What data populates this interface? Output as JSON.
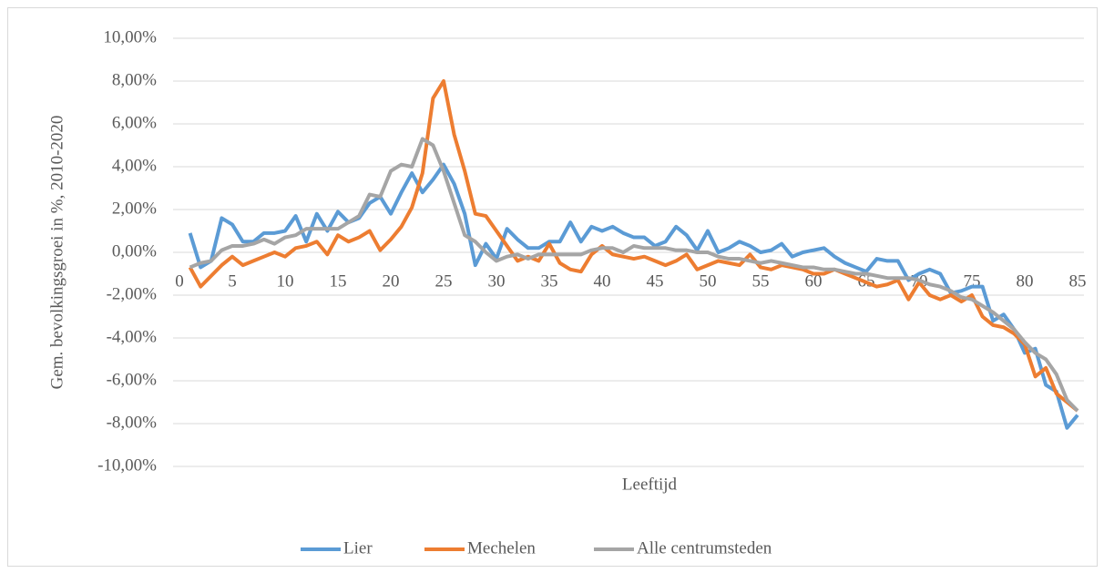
{
  "chart_data": {
    "type": "line",
    "x_label": "Leeftijd",
    "y_label": "Gem. bevolkingsgroei in %, 2010-2020",
    "x": [
      1,
      2,
      3,
      4,
      5,
      6,
      7,
      8,
      9,
      10,
      11,
      12,
      13,
      14,
      15,
      16,
      17,
      18,
      19,
      20,
      21,
      22,
      23,
      24,
      25,
      26,
      27,
      28,
      29,
      30,
      31,
      32,
      33,
      34,
      35,
      36,
      37,
      38,
      39,
      40,
      41,
      42,
      43,
      44,
      45,
      46,
      47,
      48,
      49,
      50,
      51,
      52,
      53,
      54,
      55,
      56,
      57,
      58,
      59,
      60,
      61,
      62,
      63,
      64,
      65,
      66,
      67,
      68,
      69,
      70,
      71,
      72,
      73,
      74,
      75,
      76,
      77,
      78,
      79,
      80,
      81,
      82,
      83,
      84,
      85
    ],
    "series": [
      {
        "name": "Lier",
        "color": "#5b9bd5",
        "values": [
          0.9,
          -0.7,
          -0.4,
          1.6,
          1.3,
          0.5,
          0.5,
          0.9,
          0.9,
          1.0,
          1.7,
          0.5,
          1.8,
          1.0,
          1.9,
          1.4,
          1.6,
          2.3,
          2.6,
          1.8,
          2.8,
          3.7,
          2.8,
          3.4,
          4.1,
          3.2,
          1.8,
          -0.6,
          0.4,
          -0.3,
          1.1,
          0.6,
          0.2,
          0.2,
          0.5,
          0.5,
          1.4,
          0.5,
          1.2,
          1.0,
          1.2,
          0.9,
          0.7,
          0.7,
          0.3,
          0.5,
          1.2,
          0.8,
          0.1,
          1.0,
          0.0,
          0.2,
          0.5,
          0.3,
          0.0,
          0.1,
          0.4,
          -0.2,
          0.0,
          0.1,
          0.2,
          -0.2,
          -0.5,
          -0.7,
          -0.9,
          -0.3,
          -0.4,
          -0.4,
          -1.3,
          -1.0,
          -0.8,
          -1.0,
          -1.9,
          -1.8,
          -1.6,
          -1.6,
          -3.2,
          -2.9,
          -3.6,
          -4.7,
          -4.5,
          -6.2,
          -6.5,
          -8.2,
          -7.6
        ]
      },
      {
        "name": "Mechelen",
        "color": "#ed7d31",
        "values": [
          -0.7,
          -1.6,
          -1.1,
          -0.6,
          -0.2,
          -0.6,
          -0.4,
          -0.2,
          0.0,
          -0.2,
          0.2,
          0.3,
          0.5,
          -0.1,
          0.8,
          0.5,
          0.7,
          1.0,
          0.1,
          0.6,
          1.2,
          2.1,
          3.7,
          7.2,
          8.0,
          5.5,
          3.8,
          1.8,
          1.7,
          1.0,
          0.3,
          -0.4,
          -0.2,
          -0.4,
          0.4,
          -0.5,
          -0.8,
          -0.9,
          -0.1,
          0.3,
          -0.1,
          -0.2,
          -0.3,
          -0.2,
          -0.4,
          -0.6,
          -0.4,
          -0.1,
          -0.8,
          -0.6,
          -0.4,
          -0.5,
          -0.6,
          -0.1,
          -0.7,
          -0.8,
          -0.6,
          -0.7,
          -0.8,
          -1.0,
          -1.0,
          -0.8,
          -1.0,
          -1.2,
          -1.4,
          -1.6,
          -1.5,
          -1.3,
          -2.2,
          -1.4,
          -2.0,
          -2.2,
          -2.0,
          -2.3,
          -2.0,
          -3.0,
          -3.4,
          -3.5,
          -3.8,
          -4.3,
          -5.8,
          -5.4,
          -6.6,
          -7.0,
          -7.4
        ]
      },
      {
        "name": "Alle centrumsteden",
        "color": "#a5a5a5",
        "values": [
          -0.7,
          -0.5,
          -0.4,
          0.1,
          0.3,
          0.3,
          0.4,
          0.6,
          0.4,
          0.7,
          0.8,
          1.1,
          1.1,
          1.1,
          1.1,
          1.4,
          1.7,
          2.7,
          2.6,
          3.8,
          4.1,
          4.0,
          5.3,
          5.0,
          3.8,
          2.3,
          0.8,
          0.5,
          0.0,
          -0.4,
          -0.2,
          -0.1,
          -0.3,
          -0.1,
          -0.1,
          -0.1,
          -0.1,
          -0.1,
          0.1,
          0.2,
          0.2,
          0.0,
          0.3,
          0.2,
          0.2,
          0.2,
          0.1,
          0.1,
          0.0,
          0.0,
          -0.2,
          -0.3,
          -0.3,
          -0.4,
          -0.5,
          -0.4,
          -0.5,
          -0.6,
          -0.7,
          -0.7,
          -0.8,
          -0.8,
          -0.9,
          -1.0,
          -1.0,
          -1.1,
          -1.2,
          -1.2,
          -1.2,
          -1.3,
          -1.5,
          -1.6,
          -1.8,
          -2.1,
          -2.2,
          -2.5,
          -2.8,
          -3.2,
          -3.6,
          -4.2,
          -4.7,
          -5.0,
          -5.7,
          -6.9,
          -7.4
        ]
      }
    ],
    "xlim": [
      0,
      85
    ],
    "xticks": [
      0,
      5,
      10,
      15,
      20,
      25,
      30,
      35,
      40,
      45,
      50,
      55,
      60,
      65,
      70,
      75,
      80,
      85
    ],
    "ylim": [
      -10,
      10
    ],
    "yticks": [
      {
        "value": -10,
        "label": "-10,00%"
      },
      {
        "value": -8,
        "label": "-8,00%"
      },
      {
        "value": -6,
        "label": "-6,00%"
      },
      {
        "value": -4,
        "label": "-4,00%"
      },
      {
        "value": -2,
        "label": "-2,00%"
      },
      {
        "value": 0,
        "label": "0,00%"
      },
      {
        "value": 2,
        "label": "2,00%"
      },
      {
        "value": 4,
        "label": "4,00%"
      },
      {
        "value": 6,
        "label": "6,00%"
      },
      {
        "value": 8,
        "label": "8,00%"
      },
      {
        "value": 10,
        "label": "10,00%"
      }
    ],
    "grid": true,
    "legend": "bottom"
  }
}
